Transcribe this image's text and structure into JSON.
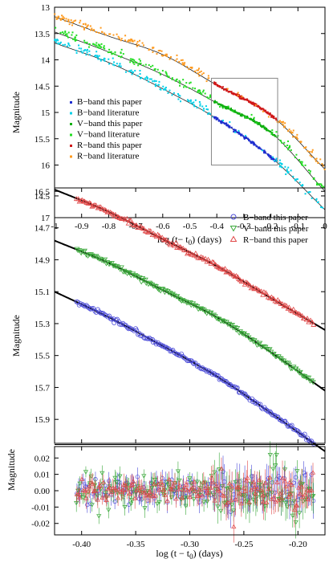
{
  "chart_data": [
    {
      "type": "scatter",
      "xlabel": "log (t− t",
      "xlabel_sub": "0",
      "xlabel_tail": ") (days)",
      "ylabel": "Magnitude",
      "xlim": [
        -1,
        0
      ],
      "ylim": [
        13,
        17
      ],
      "y_inverted": true,
      "xticks": [
        "-1",
        "-0.9",
        "-0.8",
        "-0.7",
        "-0.6",
        "-0.5",
        "-0.4",
        "-0.3",
        "-0.2",
        "-0.1",
        "0"
      ],
      "yticks": [
        "13",
        "13.5",
        "14",
        "14.5",
        "15",
        "15.5",
        "16",
        "16.5",
        "17"
      ],
      "legend_position": "lower-left",
      "series": [
        {
          "name": "B−band this paper",
          "color": "#1f2fd0",
          "x_range": [
            -0.41,
            -0.18
          ],
          "model": "B"
        },
        {
          "name": "B−band literature",
          "color": "#00d0e8",
          "x_range": [
            -1.0,
            0.0
          ],
          "model": "B"
        },
        {
          "name": "V−band this paper",
          "color": "#10b010",
          "x_range": [
            -0.41,
            -0.18
          ],
          "model": "V"
        },
        {
          "name": "V−band literature",
          "color": "#22dd22",
          "x_range": [
            -1.0,
            0.0
          ],
          "model": "V"
        },
        {
          "name": "R−band this paper",
          "color": "#d01818",
          "x_range": [
            -0.41,
            -0.18
          ],
          "model": "R"
        },
        {
          "name": "R−band literature",
          "color": "#ff9a1e",
          "x_range": [
            -1.0,
            0.0
          ],
          "model": "R"
        }
      ],
      "models": {
        "R": [
          [
            -1,
            13.18
          ],
          [
            -0.8,
            13.55
          ],
          [
            -0.6,
            13.9
          ],
          [
            -0.4,
            14.48
          ],
          [
            -0.2,
            15.05
          ],
          [
            0,
            16.08
          ]
        ],
        "V": [
          [
            -1,
            13.47
          ],
          [
            -0.8,
            13.85
          ],
          [
            -0.6,
            14.28
          ],
          [
            -0.4,
            14.82
          ],
          [
            -0.2,
            15.38
          ],
          [
            0,
            16.5
          ]
        ],
        "B": [
          [
            -1,
            13.68
          ],
          [
            -0.8,
            14.05
          ],
          [
            -0.6,
            14.55
          ],
          [
            -0.4,
            15.12
          ],
          [
            -0.2,
            15.85
          ],
          [
            0,
            16.85
          ]
        ]
      },
      "zoom_box": {
        "x": [
          -0.42,
          -0.175
        ],
        "y": [
          14.35,
          16.0
        ]
      }
    },
    {
      "type": "scatter",
      "xlabel": "",
      "ylabel": "Magnitude",
      "xlim": [
        -0.425,
        -0.175
      ],
      "ylim": [
        14.45,
        16.05
      ],
      "y_inverted": true,
      "yticks": [
        "14.5",
        "14.7",
        "14.9",
        "15.1",
        "15.3",
        "15.5",
        "15.7",
        "15.9"
      ],
      "legend_position": "top-right",
      "series": [
        {
          "name": "B−band this paper",
          "color": "#4a4ad8",
          "marker": "circle",
          "x_range": [
            -0.405,
            -0.185
          ],
          "model": "B"
        },
        {
          "name": "V−band this paper",
          "color": "#3aa83a",
          "marker": "triangle-down",
          "x_range": [
            -0.405,
            -0.185
          ],
          "model": "V"
        },
        {
          "name": "R−band this paper",
          "color": "#e04848",
          "marker": "triangle-up",
          "x_range": [
            -0.405,
            -0.185
          ],
          "model": "R"
        }
      ],
      "models": {
        "R": [
          [
            -0.425,
            14.46
          ],
          [
            -0.375,
            14.6
          ],
          [
            -0.325,
            14.77
          ],
          [
            -0.275,
            14.94
          ],
          [
            -0.225,
            15.14
          ],
          [
            -0.175,
            15.34
          ]
        ],
        "V": [
          [
            -0.425,
            14.78
          ],
          [
            -0.375,
            14.92
          ],
          [
            -0.325,
            15.09
          ],
          [
            -0.275,
            15.26
          ],
          [
            -0.225,
            15.48
          ],
          [
            -0.175,
            15.72
          ]
        ],
        "B": [
          [
            -0.425,
            15.1
          ],
          [
            -0.375,
            15.26
          ],
          [
            -0.325,
            15.44
          ],
          [
            -0.275,
            15.63
          ],
          [
            -0.225,
            15.86
          ],
          [
            -0.175,
            16.1
          ]
        ]
      }
    },
    {
      "type": "scatter",
      "xlabel": "log (t − t",
      "xlabel_sub": "0",
      "xlabel_tail": ") (days)",
      "ylabel": "Magnitude",
      "xlim": [
        -0.425,
        -0.175
      ],
      "ylim": [
        -0.027,
        0.027
      ],
      "xticks": [
        "-0.40",
        "-0.35",
        "-0.30",
        "-0.25",
        "-0.20"
      ],
      "yticks": [
        "0.02",
        "0.01",
        "0.00",
        "-0.01",
        "-0.02"
      ],
      "series": [
        {
          "name": "B−band this paper",
          "color": "#4a4ad8",
          "marker": "circle",
          "x_range": [
            -0.405,
            -0.185
          ],
          "scatter": 0.004
        },
        {
          "name": "V−band this paper",
          "color": "#3aa83a",
          "marker": "triangle-down",
          "x_range": [
            -0.405,
            -0.185
          ],
          "scatter": 0.005
        },
        {
          "name": "R−band this paper",
          "color": "#e04848",
          "marker": "triangle-up",
          "x_range": [
            -0.405,
            -0.185
          ],
          "scatter": 0.0035
        }
      ]
    }
  ]
}
